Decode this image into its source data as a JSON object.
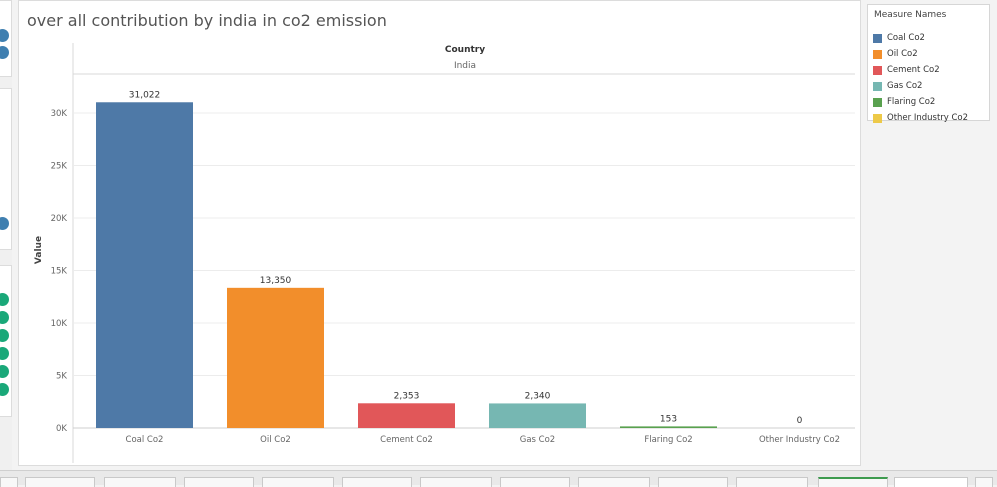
{
  "chart_title": "over all contribution by india in co2 emission",
  "legend": {
    "title": "Measure Names",
    "items": [
      {
        "label": "Coal Co2",
        "color": "#4e79a7"
      },
      {
        "label": "Oil Co2",
        "color": "#f28e2b"
      },
      {
        "label": "Cement Co2",
        "color": "#e15759"
      },
      {
        "label": "Gas Co2",
        "color": "#76b7b2"
      },
      {
        "label": "Flaring Co2",
        "color": "#59a14f"
      },
      {
        "label": "Other Industry Co2",
        "color": "#edc948"
      }
    ]
  },
  "chart_data": {
    "type": "bar",
    "title": "over all contribution by india in co2 emission",
    "column_header": "Country",
    "column_value": "India",
    "categories": [
      "Coal Co2",
      "Oil Co2",
      "Cement Co2",
      "Gas Co2",
      "Flaring Co2",
      "Other Industry Co2"
    ],
    "values": [
      31022,
      13350,
      2353,
      2340,
      153,
      0
    ],
    "data_labels": [
      "31,022",
      "13,350",
      "2,353",
      "2,340",
      "153",
      "0"
    ],
    "colors": [
      "#4e79a7",
      "#f28e2b",
      "#e15759",
      "#76b7b2",
      "#59a14f",
      "#edc948"
    ],
    "ylabel": "Value",
    "xlabel": "",
    "ylim": [
      0,
      33000
    ],
    "yticks": [
      0,
      5000,
      10000,
      15000,
      20000,
      25000,
      30000
    ],
    "ytick_labels": [
      "0K",
      "5K",
      "10K",
      "15K",
      "20K",
      "25K",
      "30K"
    ],
    "grid": true,
    "legend_position": "right"
  }
}
